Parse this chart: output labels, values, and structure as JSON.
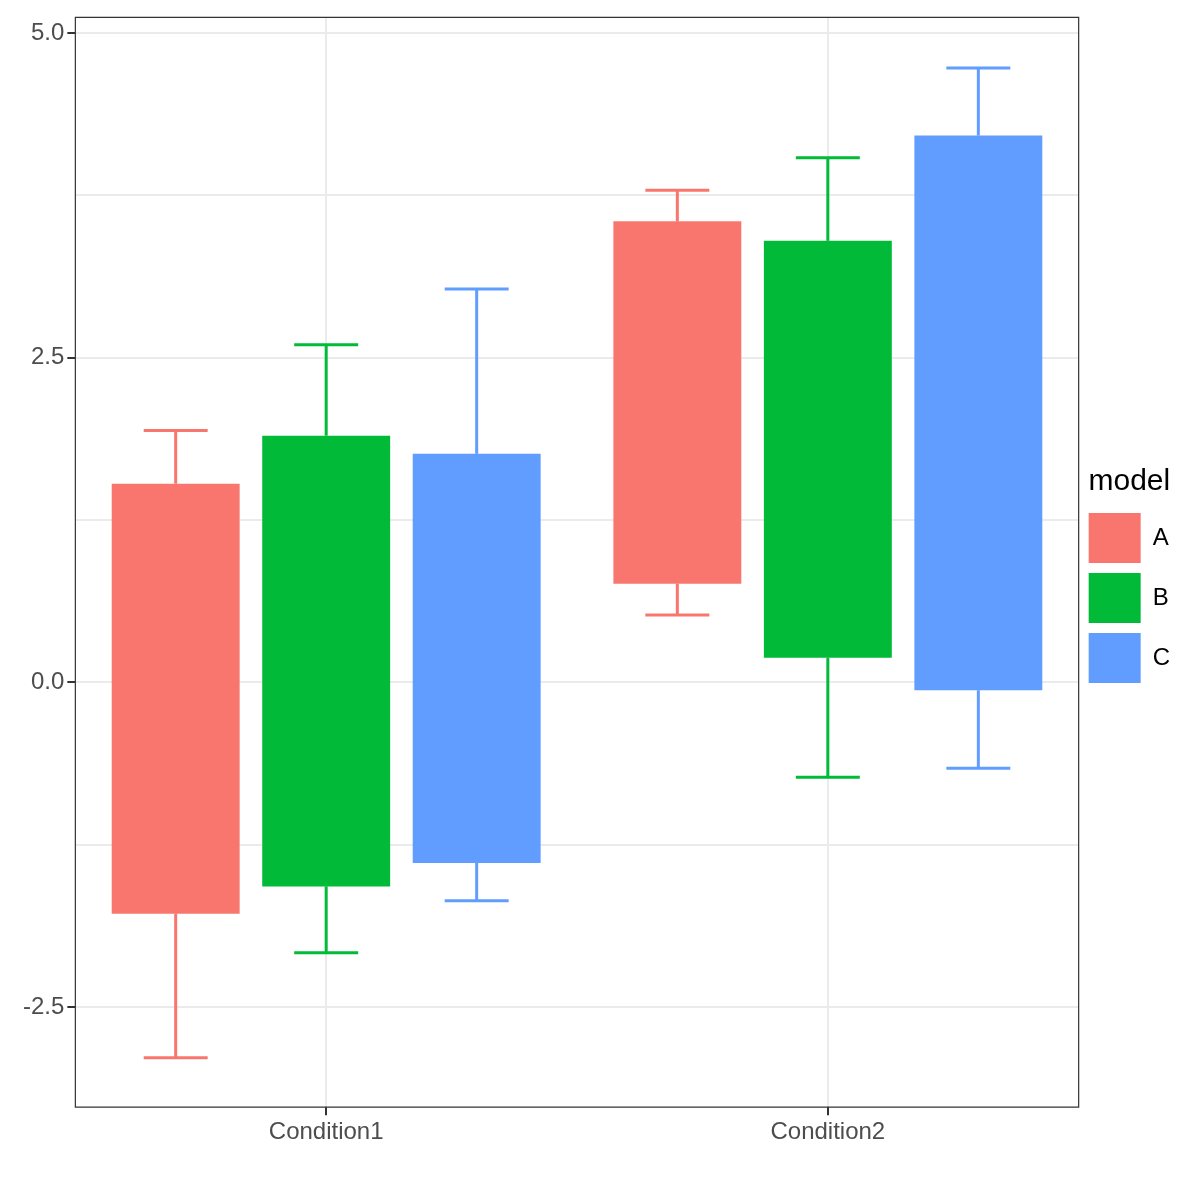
{
  "chart_data": {
    "type": "box",
    "categories": [
      "Condition1",
      "Condition2"
    ],
    "series": [
      {
        "name": "A",
        "color": "#f8766d",
        "boxes": [
          {
            "low": -2.89,
            "q1": -1.78,
            "q3": 1.53,
            "high": 1.94
          },
          {
            "low": 0.52,
            "q1": 0.76,
            "q3": 3.55,
            "high": 3.79
          }
        ]
      },
      {
        "name": "B",
        "color": "#00ba38",
        "boxes": [
          {
            "low": -2.08,
            "q1": -1.57,
            "q3": 1.9,
            "high": 2.6
          },
          {
            "low": -0.73,
            "q1": 0.19,
            "q3": 3.4,
            "high": 4.04
          }
        ]
      },
      {
        "name": "C",
        "color": "#619cff",
        "boxes": [
          {
            "low": -1.68,
            "q1": -1.39,
            "q3": 1.76,
            "high": 3.03
          },
          {
            "low": -0.66,
            "q1": -0.06,
            "q3": 4.21,
            "high": 4.73
          }
        ]
      }
    ],
    "ylim": [
      -3.27,
      5.12
    ],
    "yticks": [
      {
        "value": -2.5,
        "label": "-2.5"
      },
      {
        "value": -1.25,
        "label": null
      },
      {
        "value": 0,
        "label": "0.0"
      },
      {
        "value": 1.25,
        "label": null
      },
      {
        "value": 2.5,
        "label": "2.5"
      },
      {
        "value": 3.75,
        "label": null
      },
      {
        "value": 5,
        "label": "5.0"
      }
    ],
    "grid": true,
    "legend": "right",
    "legend_title": "model"
  }
}
